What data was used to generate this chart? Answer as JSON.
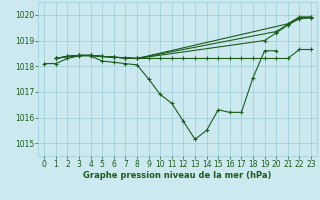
{
  "lines": [
    {
      "x": [
        0,
        1,
        2,
        3,
        4,
        5,
        6,
        7,
        8,
        9,
        10,
        11,
        12,
        13,
        14,
        15,
        16,
        17,
        18,
        19,
        20,
        21,
        22,
        23
      ],
      "y": [
        1018.1,
        1018.1,
        1018.3,
        1018.4,
        1018.4,
        1018.2,
        1018.15,
        1018.1,
        1018.05,
        1017.5,
        1016.9,
        1016.55,
        1015.85,
        1015.15,
        1015.5,
        1016.3,
        1016.2,
        1016.2,
        1017.55,
        1018.6,
        1018.6,
        null,
        null,
        null
      ]
    },
    {
      "x": [
        1,
        2,
        3,
        4,
        5,
        6,
        7,
        8,
        21,
        22,
        23
      ],
      "y": [
        1018.3,
        1018.38,
        1018.42,
        1018.42,
        1018.38,
        1018.35,
        1018.32,
        1018.3,
        1019.65,
        1019.92,
        1019.92
      ]
    },
    {
      "x": [
        1,
        2,
        3,
        4,
        5,
        6,
        7,
        8,
        20,
        21,
        22,
        23
      ],
      "y": [
        1018.3,
        1018.38,
        1018.42,
        1018.42,
        1018.38,
        1018.35,
        1018.32,
        1018.3,
        1019.35,
        1019.62,
        1019.88,
        1019.9
      ]
    },
    {
      "x": [
        1,
        2,
        3,
        4,
        5,
        6,
        7,
        8,
        19,
        20,
        21,
        22,
        23
      ],
      "y": [
        1018.3,
        1018.38,
        1018.42,
        1018.42,
        1018.38,
        1018.35,
        1018.32,
        1018.3,
        1019.0,
        1019.3,
        1019.6,
        1019.85,
        1019.88
      ]
    },
    {
      "x": [
        1,
        2,
        3,
        4,
        5,
        6,
        7,
        8,
        9,
        10,
        11,
        12,
        13,
        14,
        15,
        16,
        17,
        18,
        19,
        20,
        21,
        22,
        23
      ],
      "y": [
        1018.3,
        1018.38,
        1018.42,
        1018.42,
        1018.38,
        1018.35,
        1018.32,
        1018.3,
        1018.3,
        1018.3,
        1018.3,
        1018.3,
        1018.3,
        1018.3,
        1018.3,
        1018.3,
        1018.3,
        1018.3,
        1018.3,
        1018.3,
        1018.3,
        1018.65,
        1018.65
      ]
    }
  ],
  "bg_color": "#cce9f0",
  "grid_color": "#99ccd9",
  "line_color": "#1a5c1a",
  "xlabel": "Graphe pression niveau de la mer (hPa)",
  "ylim": [
    1014.5,
    1020.5
  ],
  "xlim": [
    -0.5,
    23.5
  ],
  "yticks": [
    1015,
    1016,
    1017,
    1018,
    1019,
    1020
  ],
  "xticks": [
    0,
    1,
    2,
    3,
    4,
    5,
    6,
    7,
    8,
    9,
    10,
    11,
    12,
    13,
    14,
    15,
    16,
    17,
    18,
    19,
    20,
    21,
    22,
    23
  ]
}
